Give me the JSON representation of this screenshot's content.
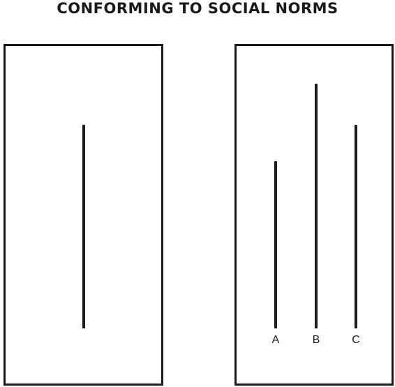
{
  "title": "CONFORMING TO SOCIAL NORMS",
  "comparison_labels": [
    "A",
    "B",
    "C"
  ]
}
